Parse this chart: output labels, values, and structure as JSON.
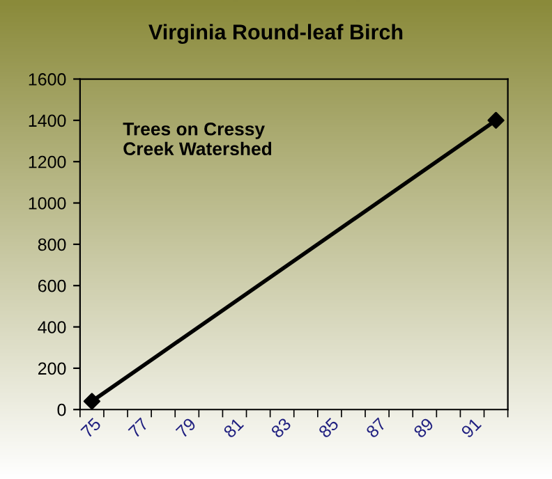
{
  "chart_data": {
    "type": "line",
    "title": "Virginia Round-leaf Birch",
    "categories": [
      "75",
      null,
      "77",
      null,
      "79",
      null,
      "81",
      null,
      "83",
      null,
      "85",
      null,
      "87",
      null,
      "89",
      null,
      "91",
      null
    ],
    "series": [
      {
        "color": "#000000",
        "values": [
          40,
          null,
          null,
          null,
          null,
          null,
          null,
          null,
          null,
          null,
          null,
          null,
          null,
          null,
          null,
          null,
          null,
          1400
        ]
      }
    ],
    "ylim": [
      0,
      1600
    ],
    "yticks": [
      0,
      200,
      400,
      600,
      800,
      1000,
      1200,
      1400,
      1600
    ],
    "annotations": [
      "Trees on Cressy\nCreek Watershed"
    ],
    "grid": false,
    "marker": "diamond",
    "line_style": "solid"
  }
}
